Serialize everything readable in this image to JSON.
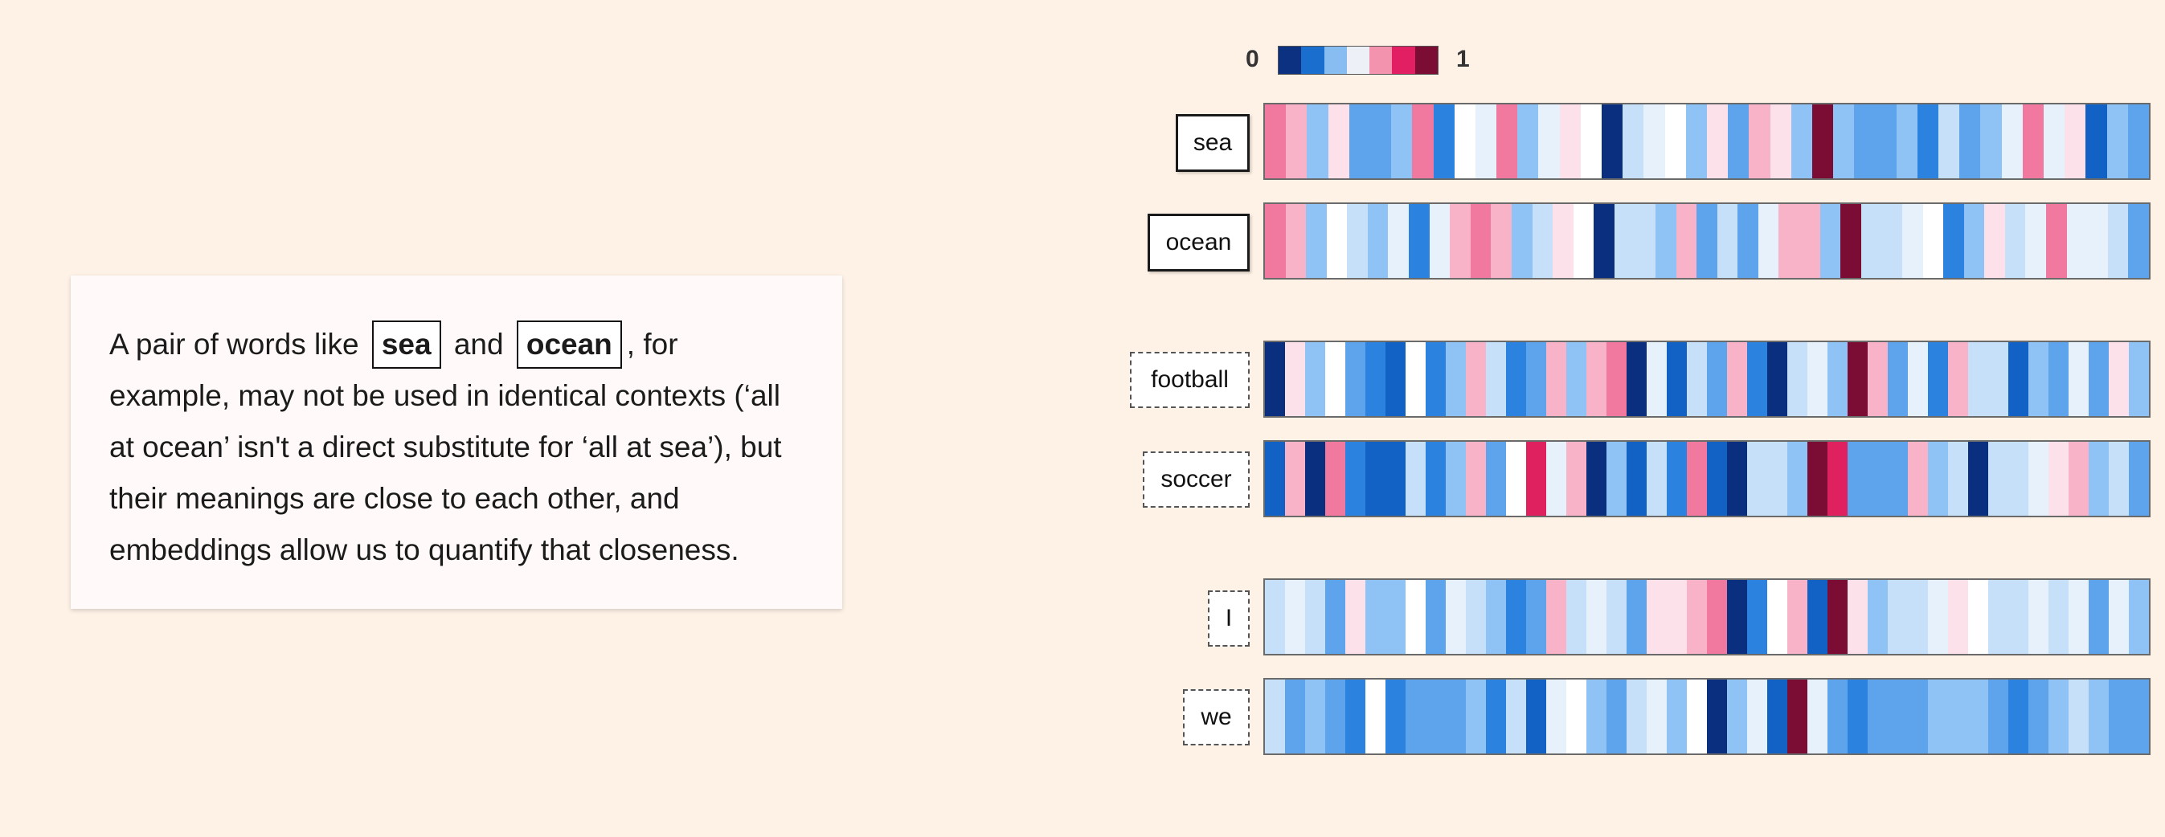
{
  "explanation": {
    "before_first": "A pair of words like ",
    "word_1": "sea",
    "between": " and ",
    "word_2": "ocean",
    "after": ", for example, may not be used in identical contexts (‘all at ocean’ isn't a direct substitute for ‘all at sea’), but their meanings are close to each other, and embeddings allow us to quantify that closeness."
  },
  "legend": {
    "min_label": "0",
    "max_label": "1",
    "colors": [
      "#0c3180",
      "#1a6fce",
      "#88bdf2",
      "#edf0f6",
      "#f493ad",
      "#e21f63",
      "#7b0d35"
    ]
  },
  "color_scale": {
    "0": "#0a2f7e",
    "1": "#1262c6",
    "2": "#2b83df",
    "3": "#5ea4ec",
    "4": "#8fc3f5",
    "5": "#c6e0fa",
    "6": "#e6f1fc",
    "7": "#ffffff",
    "8": "#fde1ea",
    "9": "#f8b3c9",
    "10": "#f1789f",
    "11": "#e0215f",
    "12": "#7b0d35"
  },
  "words": [
    {
      "word": "sea",
      "box_style": "solid",
      "values": [
        10,
        9,
        4,
        8,
        3,
        3,
        4,
        10,
        2,
        7,
        6,
        10,
        4,
        6,
        8,
        7,
        0,
        5,
        6,
        7,
        4,
        8,
        3,
        9,
        8,
        4,
        12,
        4,
        3,
        3,
        4,
        2,
        5,
        3,
        4,
        6,
        10,
        6,
        8,
        1,
        4,
        3
      ]
    },
    {
      "word": "ocean",
      "box_style": "solid",
      "values": [
        10,
        9,
        4,
        7,
        5,
        4,
        6,
        2,
        6,
        9,
        10,
        9,
        4,
        5,
        8,
        7,
        0,
        5,
        5,
        4,
        9,
        3,
        5,
        3,
        6,
        9,
        9,
        4,
        12,
        5,
        5,
        6,
        7,
        2,
        4,
        8,
        5,
        6,
        10,
        6,
        6,
        5,
        3
      ]
    },
    {
      "word": "football",
      "box_style": "dashed",
      "values": [
        0,
        8,
        4,
        7,
        3,
        2,
        1,
        7,
        2,
        4,
        9,
        5,
        2,
        3,
        9,
        4,
        9,
        10,
        0,
        6,
        1,
        5,
        3,
        9,
        2,
        0,
        5,
        6,
        4,
        12,
        9,
        3,
        6,
        2,
        9,
        5,
        5,
        1,
        4,
        3,
        6,
        3,
        8,
        4
      ]
    },
    {
      "word": "soccer",
      "box_style": "dashed",
      "values": [
        1,
        9,
        0,
        10,
        2,
        1,
        1,
        5,
        2,
        4,
        9,
        3,
        7,
        11,
        6,
        9,
        0,
        4,
        1,
        5,
        2,
        10,
        1,
        0,
        5,
        5,
        4,
        12,
        11,
        3,
        3,
        3,
        9,
        4,
        5,
        0,
        5,
        5,
        6,
        8,
        9,
        4,
        5,
        3
      ]
    },
    {
      "word": "I",
      "box_style": "dashed",
      "values": [
        5,
        6,
        5,
        3,
        8,
        4,
        4,
        7,
        3,
        6,
        5,
        4,
        2,
        3,
        9,
        5,
        6,
        5,
        3,
        8,
        8,
        9,
        10,
        0,
        2,
        7,
        9,
        1,
        12,
        8,
        4,
        5,
        5,
        6,
        8,
        7,
        5,
        5,
        6,
        5,
        6,
        3,
        6,
        4
      ]
    },
    {
      "word": "we",
      "box_style": "dashed",
      "values": [
        5,
        3,
        4,
        3,
        2,
        7,
        2,
        3,
        3,
        3,
        4,
        2,
        5,
        1,
        6,
        7,
        4,
        3,
        5,
        6,
        4,
        7,
        0,
        4,
        6,
        1,
        12,
        6,
        3,
        2,
        3,
        3,
        3,
        4,
        4,
        4,
        3,
        2,
        3,
        4,
        5,
        4,
        3,
        3
      ]
    }
  ]
}
